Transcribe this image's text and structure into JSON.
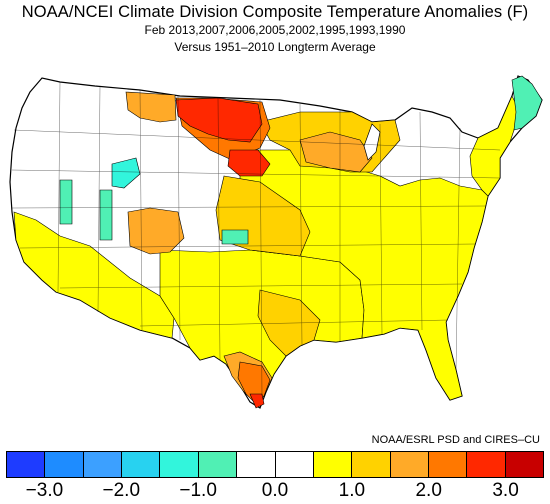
{
  "title": "NOAA/NCEI Climate Division Composite Temperature Anomalies (F)",
  "subtitle": "Feb  2013,2007,2006,2005,2002,1995,1993,1990",
  "subtitle2": "Versus 1951–2010 Longterm Average",
  "credit": "NOAA/ESRL PSD and CIRES–CU",
  "colorbar": {
    "colors": [
      "#1e3cff",
      "#1e8cff",
      "#3ca0ff",
      "#28d2f0",
      "#32f5dc",
      "#50f0b4",
      "#ffffff",
      "#ffffff",
      "#ffff00",
      "#ffd200",
      "#ffaa28",
      "#ff7800",
      "#ff2800",
      "#c80000"
    ],
    "ticks": [
      "−3.0",
      "−2.0",
      "−1.0",
      "0.0",
      "1.0",
      "2.0",
      "3.0"
    ]
  },
  "legend_colors": {
    "neutral": "#ffffff",
    "plus_0_5": "#ffff00",
    "plus_1_0": "#ffd200",
    "plus_1_5": "#ffaa28",
    "plus_2_0": "#ff7800",
    "plus_2_5": "#ff2800",
    "minus_1_0": "#50f0b4",
    "minus_1_5": "#32f5dc"
  }
}
